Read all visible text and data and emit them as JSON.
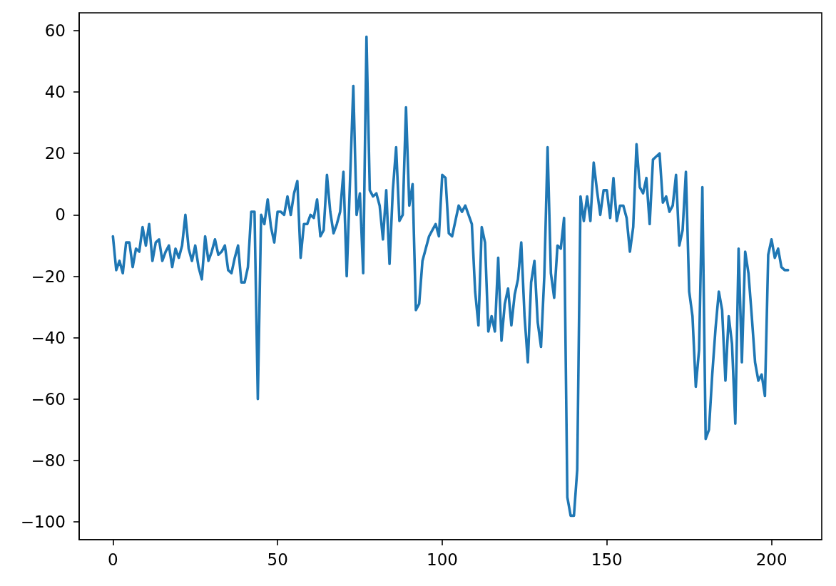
{
  "chart_data": {
    "type": "line",
    "color": "#1f77b4",
    "x": [
      0,
      1,
      2,
      3,
      4,
      5,
      6,
      7,
      8,
      9,
      10,
      11,
      12,
      13,
      14,
      15,
      16,
      17,
      18,
      19,
      20,
      21,
      22,
      23,
      24,
      25,
      26,
      27,
      28,
      29,
      30,
      31,
      32,
      33,
      34,
      35,
      36,
      37,
      38,
      39,
      40,
      41,
      42,
      43,
      44,
      45,
      46,
      47,
      48,
      49,
      50,
      51,
      52,
      53,
      54,
      55,
      56,
      57,
      58,
      59,
      60,
      61,
      62,
      63,
      64,
      65,
      66,
      67,
      68,
      69,
      70,
      71,
      72,
      73,
      74,
      75,
      76,
      77,
      78,
      79,
      80,
      81,
      82,
      83,
      84,
      85,
      86,
      87,
      88,
      89,
      90,
      91,
      92,
      93,
      94,
      95,
      96,
      97,
      98,
      99,
      100,
      101,
      102,
      103,
      104,
      105,
      106,
      107,
      108,
      109,
      110,
      111,
      112,
      113,
      114,
      115,
      116,
      117,
      118,
      119,
      120,
      121,
      122,
      123,
      124,
      125,
      126,
      127,
      128,
      129,
      130,
      131,
      132,
      133,
      134,
      135,
      136,
      137,
      138,
      139,
      140,
      141,
      142,
      143,
      144,
      145,
      146,
      147,
      148,
      149,
      150,
      151,
      152,
      153,
      154,
      155,
      156,
      157,
      158,
      159,
      160,
      161,
      162,
      163,
      164,
      165,
      166,
      167,
      168,
      169,
      170,
      171,
      172,
      173,
      174,
      175,
      176,
      177,
      178,
      179,
      180,
      181,
      182,
      183,
      184,
      185,
      186,
      187,
      188,
      189,
      190,
      191,
      192,
      193,
      194,
      195,
      196,
      197,
      198,
      199,
      200,
      201,
      202,
      203,
      204,
      205
    ],
    "values": [
      -7,
      -18,
      -15,
      -19,
      -9,
      -9,
      -17,
      -11,
      -12,
      -4,
      -10,
      -3,
      -15,
      -9,
      -8,
      -15,
      -12,
      -10,
      -17,
      -11,
      -14,
      -10,
      0,
      -11,
      -15,
      -10,
      -17,
      -21,
      -7,
      -15,
      -12,
      -8,
      -13,
      -12,
      -10,
      -18,
      -19,
      -14,
      -10,
      -22,
      -22,
      -17,
      1,
      1,
      -60,
      0,
      -3,
      5,
      -4,
      -9,
      1,
      1,
      0,
      6,
      0,
      7,
      11,
      -14,
      -3,
      -3,
      0,
      -1,
      5,
      -7,
      -5,
      13,
      1,
      -6,
      -3,
      1,
      14,
      -20,
      11,
      42,
      0,
      7,
      -19,
      58,
      8,
      6,
      7,
      3,
      -8,
      8,
      -16,
      8,
      22,
      -2,
      0,
      35,
      3,
      10,
      -31,
      -29,
      -15,
      -11,
      -7,
      -5,
      -3,
      -7,
      13,
      12,
      -6,
      -7,
      -2,
      3,
      1,
      3,
      0,
      -3,
      -25,
      -36,
      -4,
      -9,
      -38,
      -33,
      -38,
      -14,
      -41,
      -29,
      -24,
      -36,
      -26,
      -21,
      -9,
      -33,
      -48,
      -22,
      -15,
      -35,
      -43,
      -20,
      22,
      -19,
      -27,
      -10,
      -11,
      -1,
      -92,
      -98,
      -98,
      -83,
      6,
      -2,
      6,
      -2,
      17,
      8,
      0,
      8,
      8,
      -1,
      12,
      -2,
      3,
      3,
      -1,
      -12,
      -4,
      23,
      9,
      7,
      12,
      -3,
      18,
      19,
      20,
      4,
      6,
      1,
      3,
      13,
      -10,
      -5,
      14,
      -25,
      -33,
      -56,
      -44,
      9,
      -73,
      -70,
      -52,
      -37,
      -25,
      -31,
      -54,
      -33,
      -42,
      -68,
      -11,
      -48,
      -12,
      -19,
      -33,
      -48,
      -54,
      -52,
      -59,
      -13,
      -8,
      -14,
      -11,
      -17,
      -18,
      -18
    ],
    "xlim": [
      -10.25,
      215.25
    ],
    "xticks": [
      0,
      50,
      100,
      150,
      200
    ],
    "ylim": [
      -105.8,
      65.8
    ],
    "yticks": [
      {
        "value": -100,
        "label": "−100"
      },
      {
        "value": -80,
        "label": "−80"
      },
      {
        "value": -60,
        "label": "−60"
      },
      {
        "value": -40,
        "label": "−40"
      },
      {
        "value": -20,
        "label": "−20"
      },
      0,
      20,
      40,
      60
    ],
    "grid": false,
    "line_style": "solid"
  }
}
